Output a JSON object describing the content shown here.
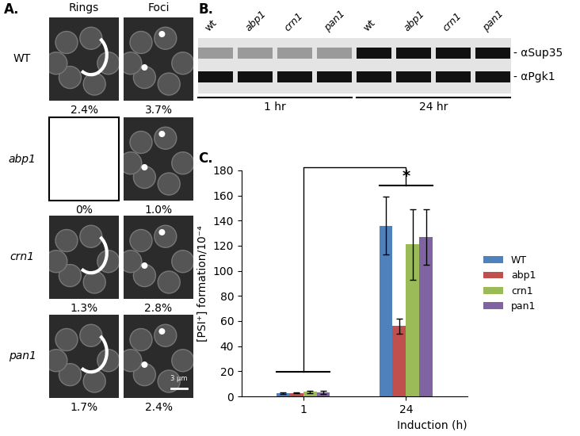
{
  "panel_a": {
    "label": "A.",
    "columns": [
      "Rings",
      "Foci"
    ],
    "rows": [
      {
        "name": "WT",
        "values": [
          "2.4%",
          "3.7%"
        ],
        "images": [
          true,
          true
        ]
      },
      {
        "name": "abp1",
        "values": [
          "0%",
          "1.0%"
        ],
        "images": [
          false,
          true
        ]
      },
      {
        "name": "crn1",
        "values": [
          "1.3%",
          "2.8%"
        ],
        "images": [
          true,
          true
        ]
      },
      {
        "name": "pan1",
        "values": [
          "1.7%",
          "2.4%"
        ],
        "images": [
          true,
          true
        ]
      }
    ],
    "scale_bar": "3 μm"
  },
  "panel_b": {
    "label": "B.",
    "lanes": [
      "wt",
      "abp1",
      "crn1",
      "pan1",
      "wt",
      "abp1",
      "crn1",
      "pan1"
    ],
    "antibodies": [
      "- αSup35",
      "- αPgk1"
    ],
    "timepoints": [
      "1 hr",
      "24 hr"
    ]
  },
  "chart_data": {
    "type": "bar",
    "label": "C.",
    "x_label": "Induction (h)",
    "y_label": "[PSI⁺] formation/10⁻⁴",
    "categories": [
      "1",
      "24"
    ],
    "series": [
      {
        "name": "WT",
        "color": "#4f81bd",
        "values": [
          2.5,
          136
        ],
        "errors": [
          0.8,
          23
        ]
      },
      {
        "name": "abp1",
        "color": "#c0504d",
        "values": [
          2.8,
          56
        ],
        "errors": [
          0.5,
          6
        ]
      },
      {
        "name": "crn1",
        "color": "#9bbb59",
        "values": [
          3.5,
          121
        ],
        "errors": [
          1.0,
          28
        ]
      },
      {
        "name": "pan1",
        "color": "#8064a2",
        "values": [
          3.2,
          127
        ],
        "errors": [
          1.5,
          22
        ]
      }
    ],
    "ylim": [
      0,
      180
    ],
    "yticks": [
      0,
      20,
      40,
      60,
      80,
      100,
      120,
      140,
      160,
      180
    ],
    "significance": "*",
    "legend": "right",
    "grid": false
  }
}
